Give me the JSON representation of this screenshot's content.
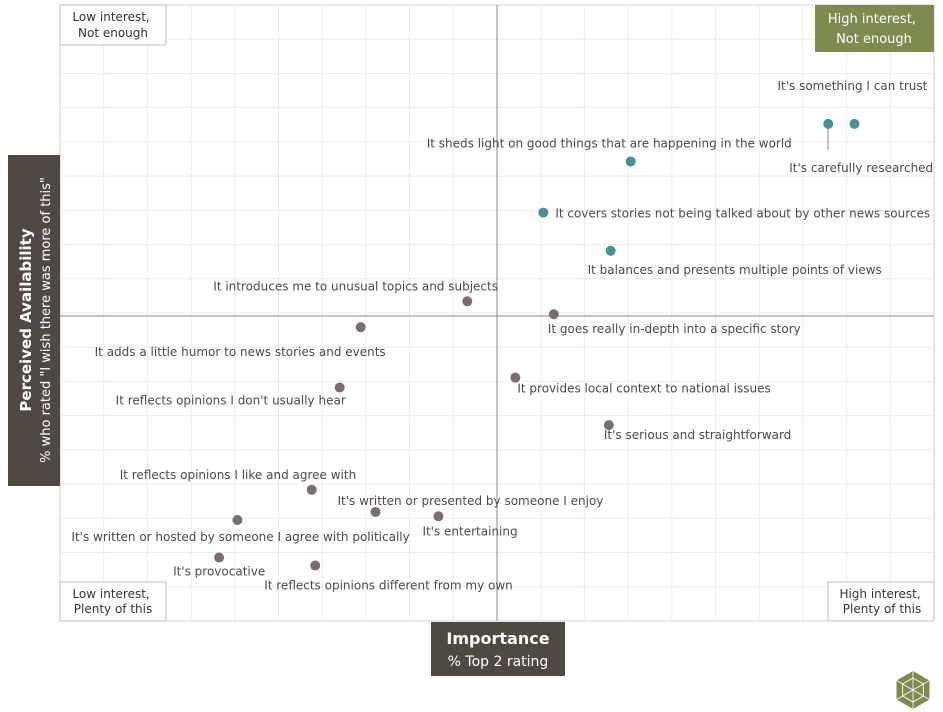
{
  "colors": {
    "teal": "#4a8f91",
    "gray": "#7a6f6f",
    "olive": "#7d8b4e",
    "label_bg": "#4e4a43"
  },
  "quadrants": {
    "top_left": "Low interest,\nNot enough",
    "top_right": "High interest,\nNot enough",
    "bottom_left": "Low interest,\nPlenty of this",
    "bottom_right": "High interest,\nPlenty of this"
  },
  "chart_data": {
    "type": "scatter",
    "xlabel": "Importance",
    "xlabel_sub": "% Top 2 rating",
    "ylabel": "Perceived Availability",
    "ylabel_sub": "% who rated \"I wish there was more of this\"",
    "xlim": [
      0,
      100
    ],
    "ylim": [
      0,
      100
    ],
    "x_divider": 50,
    "y_divider": 50,
    "grid": true,
    "points": [
      {
        "label": "It's something I can trust",
        "x": 90.9,
        "y": 80.7,
        "group": "high"
      },
      {
        "label": "It's carefully researched",
        "x": 87.9,
        "y": 80.7,
        "group": "high"
      },
      {
        "label": "It sheds light on good things that are happening in the world",
        "x": 65.3,
        "y": 74.6,
        "group": "high"
      },
      {
        "label": "It covers stories not being talked about by other news sources",
        "x": 55.3,
        "y": 66.3,
        "group": "high"
      },
      {
        "label": "It balances and presents multiple points of views",
        "x": 63.0,
        "y": 60.1,
        "group": "high"
      },
      {
        "label": "It introduces me to unusual topics and subjects",
        "x": 46.6,
        "y": 51.9,
        "group": "low"
      },
      {
        "label": "It goes really in-depth into a specific story",
        "x": 56.5,
        "y": 49.8,
        "group": "low"
      },
      {
        "label": "It adds a little humor to news stories and events",
        "x": 34.4,
        "y": 47.7,
        "group": "low"
      },
      {
        "label": "It reflects opinions I don't usually hear",
        "x": 32.0,
        "y": 37.9,
        "group": "low"
      },
      {
        "label": "It provides local context to national issues",
        "x": 52.1,
        "y": 39.5,
        "group": "low"
      },
      {
        "label": "It's serious and straightforward",
        "x": 62.8,
        "y": 31.8,
        "group": "low"
      },
      {
        "label": "It reflects opinions I like and agree with",
        "x": 28.8,
        "y": 21.3,
        "group": "low"
      },
      {
        "label": "It's written or presented by someone I enjoy",
        "x": 36.1,
        "y": 17.7,
        "group": "low"
      },
      {
        "label": "It's entertaining",
        "x": 43.3,
        "y": 17.0,
        "group": "low"
      },
      {
        "label": "It's written or hosted by someone I agree with politically",
        "x": 20.3,
        "y": 16.4,
        "group": "low"
      },
      {
        "label": "It's provocative",
        "x": 18.2,
        "y": 10.3,
        "group": "low"
      },
      {
        "label": "It reflects opinions different from my own",
        "x": 29.2,
        "y": 9.0,
        "group": "low"
      }
    ]
  }
}
